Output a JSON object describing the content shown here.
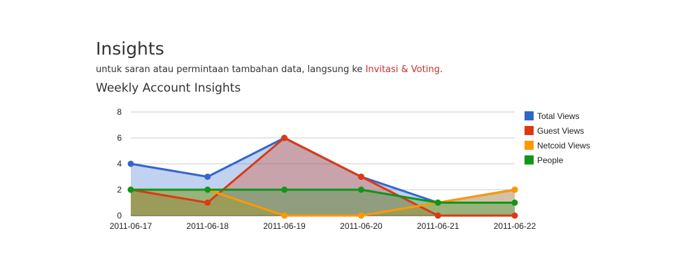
{
  "header": {
    "title": "Insights",
    "intro_text": "untuk saran atau permintaan tambahan data, langsung ke ",
    "intro_link": "Invitasi & Voting",
    "intro_end": "."
  },
  "section": {
    "title": "Weekly Account Insights"
  },
  "chart_data": {
    "type": "area",
    "x": [
      "2011-06-17",
      "2011-06-18",
      "2011-06-19",
      "2011-06-20",
      "2011-06-21",
      "2011-06-22"
    ],
    "yticks": [
      "0",
      "2",
      "4",
      "6",
      "8"
    ],
    "ylim": [
      0,
      8
    ],
    "grid": true,
    "legend_position": "right",
    "series": [
      {
        "name": "Total Views",
        "color": "#3366cc",
        "values": [
          4,
          3,
          6,
          3,
          1,
          2
        ]
      },
      {
        "name": "Guest Views",
        "color": "#dc3912",
        "values": [
          2,
          1,
          6,
          3,
          0,
          0
        ]
      },
      {
        "name": "Netcoid Views",
        "color": "#ff9900",
        "values": [
          2,
          2,
          0,
          0,
          1,
          2
        ]
      },
      {
        "name": "People",
        "color": "#109618",
        "values": [
          2,
          2,
          2,
          2,
          1,
          1
        ]
      }
    ]
  }
}
